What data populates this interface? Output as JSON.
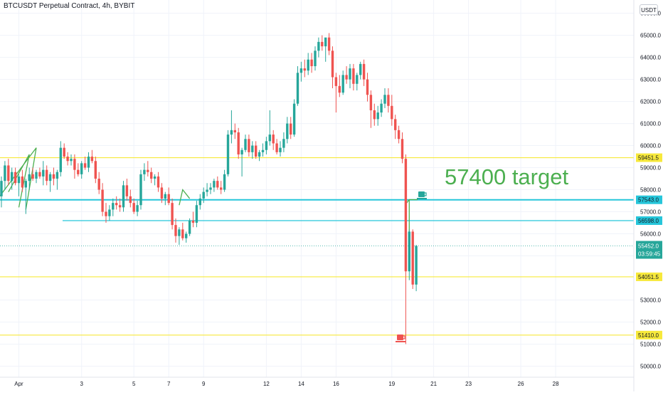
{
  "chart_data": {
    "type": "candlestick",
    "title": "BTCUSDT Perpetual Contract, 4h, BYBIT",
    "currency": "USDT",
    "ylim": [
      49500,
      66600
    ],
    "x_tick_labels": [
      "Apr",
      "3",
      "5",
      "7",
      "9",
      "12",
      "14",
      "16",
      "19",
      "21",
      "23",
      "26",
      "28"
    ],
    "y_tick_labels": [
      "66000.0",
      "65000.0",
      "64000.0",
      "63000.0",
      "62000.0",
      "61000.0",
      "60000.0",
      "59000.0",
      "58000.0",
      "57000.0",
      "56000.0",
      "55000.0",
      "53000.0",
      "52000.0",
      "51000.0",
      "50000.0"
    ],
    "y_tick_values": [
      66000,
      65000,
      64000,
      63000,
      62000,
      61000,
      60000,
      59000,
      58000,
      57000,
      56000,
      55000,
      53000,
      52000,
      51000,
      50000
    ],
    "horizontal_levels": [
      {
        "label": "59451.5",
        "value": 59451.5,
        "color": "#f7e93b",
        "text_color": "#131722"
      },
      {
        "label": "57543.0",
        "value": 57543.0,
        "color": "#26c6da",
        "text_color": "#131722"
      },
      {
        "label": "56598.0",
        "value": 56598.0,
        "color": "#26c6da",
        "text_color": "#131722",
        "partial": true
      },
      {
        "label": "54051.5",
        "value": 54051.5,
        "color": "#f7e93b",
        "text_color": "#131722"
      },
      {
        "label": "51410.0",
        "value": 51410.0,
        "color": "#f7e93b",
        "text_color": "#131722"
      }
    ],
    "last_price": {
      "label": "55452.0",
      "countdown": "03:59:45",
      "value": 55452,
      "color": "#26a69a"
    },
    "annotation_text": "57400 target",
    "colors": {
      "up": "#26a69a",
      "down": "#ef5350",
      "target_arrow": "#4caf50",
      "grid": "#f0f3fa"
    },
    "candles": [
      {
        "o": 57700,
        "h": 58600,
        "l": 57200,
        "c": 58400
      },
      {
        "o": 58400,
        "h": 59300,
        "l": 58000,
        "c": 59100
      },
      {
        "o": 59100,
        "h": 59400,
        "l": 58200,
        "c": 58400
      },
      {
        "o": 58400,
        "h": 59000,
        "l": 58000,
        "c": 58800
      },
      {
        "o": 58800,
        "h": 59000,
        "l": 58200,
        "c": 58300
      },
      {
        "o": 58300,
        "h": 58700,
        "l": 57700,
        "c": 58600
      },
      {
        "o": 58600,
        "h": 58900,
        "l": 57900,
        "c": 58100
      },
      {
        "o": 58100,
        "h": 58500,
        "l": 56900,
        "c": 58400
      },
      {
        "o": 58400,
        "h": 59000,
        "l": 58000,
        "c": 58700
      },
      {
        "o": 58700,
        "h": 59000,
        "l": 58400,
        "c": 58500
      },
      {
        "o": 58500,
        "h": 58900,
        "l": 58300,
        "c": 58800
      },
      {
        "o": 58800,
        "h": 59000,
        "l": 58500,
        "c": 58600
      },
      {
        "o": 58600,
        "h": 59300,
        "l": 58200,
        "c": 58900
      },
      {
        "o": 58900,
        "h": 59100,
        "l": 58200,
        "c": 58400
      },
      {
        "o": 58400,
        "h": 58800,
        "l": 57900,
        "c": 58700
      },
      {
        "o": 58700,
        "h": 59000,
        "l": 58200,
        "c": 58500
      },
      {
        "o": 58500,
        "h": 58900,
        "l": 58000,
        "c": 58800
      },
      {
        "o": 58800,
        "h": 60200,
        "l": 58600,
        "c": 59900
      },
      {
        "o": 59900,
        "h": 60100,
        "l": 59400,
        "c": 59500
      },
      {
        "o": 59500,
        "h": 59700,
        "l": 59100,
        "c": 59300
      },
      {
        "o": 59300,
        "h": 59600,
        "l": 59100,
        "c": 59400
      },
      {
        "o": 59400,
        "h": 59600,
        "l": 58500,
        "c": 58900
      },
      {
        "o": 58900,
        "h": 59200,
        "l": 58600,
        "c": 58700
      },
      {
        "o": 58700,
        "h": 59300,
        "l": 58500,
        "c": 59200
      },
      {
        "o": 59200,
        "h": 59500,
        "l": 58900,
        "c": 59000
      },
      {
        "o": 59000,
        "h": 59700,
        "l": 58800,
        "c": 59500
      },
      {
        "o": 59500,
        "h": 59800,
        "l": 59200,
        "c": 59300
      },
      {
        "o": 59300,
        "h": 59500,
        "l": 58300,
        "c": 58500
      },
      {
        "o": 58500,
        "h": 58800,
        "l": 57800,
        "c": 58000
      },
      {
        "o": 58000,
        "h": 58300,
        "l": 56800,
        "c": 57000
      },
      {
        "o": 57000,
        "h": 57400,
        "l": 56500,
        "c": 56800
      },
      {
        "o": 56800,
        "h": 57300,
        "l": 56600,
        "c": 57100
      },
      {
        "o": 57100,
        "h": 57600,
        "l": 56800,
        "c": 57400
      },
      {
        "o": 57400,
        "h": 57700,
        "l": 57100,
        "c": 57300
      },
      {
        "o": 57300,
        "h": 57600,
        "l": 57000,
        "c": 57200
      },
      {
        "o": 57200,
        "h": 58400,
        "l": 57000,
        "c": 58200
      },
      {
        "o": 58200,
        "h": 58500,
        "l": 57500,
        "c": 57700
      },
      {
        "o": 57700,
        "h": 58000,
        "l": 57200,
        "c": 57400
      },
      {
        "o": 57400,
        "h": 57600,
        "l": 56900,
        "c": 57000
      },
      {
        "o": 57000,
        "h": 57500,
        "l": 56800,
        "c": 57300
      },
      {
        "o": 57300,
        "h": 58900,
        "l": 57100,
        "c": 58700
      },
      {
        "o": 58700,
        "h": 59200,
        "l": 58400,
        "c": 58900
      },
      {
        "o": 58900,
        "h": 59300,
        "l": 58600,
        "c": 58800
      },
      {
        "o": 58800,
        "h": 59000,
        "l": 58300,
        "c": 58500
      },
      {
        "o": 58500,
        "h": 58700,
        "l": 58200,
        "c": 58600
      },
      {
        "o": 58600,
        "h": 58800,
        "l": 57900,
        "c": 58100
      },
      {
        "o": 58100,
        "h": 58300,
        "l": 57400,
        "c": 57600
      },
      {
        "o": 57600,
        "h": 57900,
        "l": 57300,
        "c": 57800
      },
      {
        "o": 57800,
        "h": 58100,
        "l": 57300,
        "c": 57400
      },
      {
        "o": 57400,
        "h": 57600,
        "l": 56200,
        "c": 56400
      },
      {
        "o": 56400,
        "h": 56700,
        "l": 55600,
        "c": 55900
      },
      {
        "o": 55900,
        "h": 56300,
        "l": 55500,
        "c": 56200
      },
      {
        "o": 56200,
        "h": 56500,
        "l": 55700,
        "c": 55800
      },
      {
        "o": 55800,
        "h": 56100,
        "l": 55600,
        "c": 56000
      },
      {
        "o": 56000,
        "h": 56700,
        "l": 55900,
        "c": 56600
      },
      {
        "o": 56600,
        "h": 57000,
        "l": 56300,
        "c": 56500
      },
      {
        "o": 56500,
        "h": 57500,
        "l": 56300,
        "c": 57300
      },
      {
        "o": 57300,
        "h": 57800,
        "l": 57100,
        "c": 57600
      },
      {
        "o": 57600,
        "h": 58100,
        "l": 57400,
        "c": 57900
      },
      {
        "o": 57900,
        "h": 58300,
        "l": 57700,
        "c": 58000
      },
      {
        "o": 58000,
        "h": 58300,
        "l": 57800,
        "c": 58100
      },
      {
        "o": 58100,
        "h": 58500,
        "l": 57900,
        "c": 58400
      },
      {
        "o": 58400,
        "h": 58600,
        "l": 58000,
        "c": 58100
      },
      {
        "o": 58100,
        "h": 58400,
        "l": 57800,
        "c": 58000
      },
      {
        "o": 58000,
        "h": 58900,
        "l": 57900,
        "c": 58700
      },
      {
        "o": 58700,
        "h": 60700,
        "l": 58600,
        "c": 60500
      },
      {
        "o": 60500,
        "h": 61600,
        "l": 60100,
        "c": 60700
      },
      {
        "o": 60700,
        "h": 61000,
        "l": 60300,
        "c": 60600
      },
      {
        "o": 60600,
        "h": 60800,
        "l": 59400,
        "c": 59600
      },
      {
        "o": 59600,
        "h": 59900,
        "l": 58600,
        "c": 59800
      },
      {
        "o": 59800,
        "h": 60500,
        "l": 59700,
        "c": 60300
      },
      {
        "o": 60300,
        "h": 60500,
        "l": 59500,
        "c": 59700
      },
      {
        "o": 59700,
        "h": 60200,
        "l": 59400,
        "c": 60000
      },
      {
        "o": 60000,
        "h": 60200,
        "l": 59400,
        "c": 59500
      },
      {
        "o": 59500,
        "h": 59800,
        "l": 59300,
        "c": 59700
      },
      {
        "o": 59700,
        "h": 60100,
        "l": 59500,
        "c": 59800
      },
      {
        "o": 59800,
        "h": 60400,
        "l": 59600,
        "c": 60200
      },
      {
        "o": 60200,
        "h": 61600,
        "l": 60000,
        "c": 60500
      },
      {
        "o": 60500,
        "h": 60700,
        "l": 59800,
        "c": 60100
      },
      {
        "o": 60100,
        "h": 60300,
        "l": 59600,
        "c": 59700
      },
      {
        "o": 59700,
        "h": 60200,
        "l": 59500,
        "c": 59900
      },
      {
        "o": 59900,
        "h": 60600,
        "l": 59700,
        "c": 60300
      },
      {
        "o": 60300,
        "h": 61300,
        "l": 60100,
        "c": 61000
      },
      {
        "o": 61000,
        "h": 61300,
        "l": 60300,
        "c": 60500
      },
      {
        "o": 60500,
        "h": 62100,
        "l": 60400,
        "c": 61900
      },
      {
        "o": 61900,
        "h": 63600,
        "l": 61800,
        "c": 63300
      },
      {
        "o": 63300,
        "h": 63800,
        "l": 62900,
        "c": 63500
      },
      {
        "o": 63500,
        "h": 63900,
        "l": 63100,
        "c": 63400
      },
      {
        "o": 63400,
        "h": 64200,
        "l": 63200,
        "c": 63900
      },
      {
        "o": 63900,
        "h": 64200,
        "l": 63300,
        "c": 63600
      },
      {
        "o": 63600,
        "h": 64500,
        "l": 63400,
        "c": 64300
      },
      {
        "o": 64300,
        "h": 64900,
        "l": 64000,
        "c": 64700
      },
      {
        "o": 64700,
        "h": 65000,
        "l": 64300,
        "c": 64500
      },
      {
        "o": 64500,
        "h": 64800,
        "l": 63800,
        "c": 64900
      },
      {
        "o": 64900,
        "h": 65100,
        "l": 64100,
        "c": 64300
      },
      {
        "o": 64300,
        "h": 64500,
        "l": 62600,
        "c": 63100
      },
      {
        "o": 63100,
        "h": 63300,
        "l": 61500,
        "c": 62700
      },
      {
        "o": 62700,
        "h": 63200,
        "l": 62200,
        "c": 62400
      },
      {
        "o": 62400,
        "h": 63400,
        "l": 62300,
        "c": 63200
      },
      {
        "o": 63200,
        "h": 63600,
        "l": 62800,
        "c": 63000
      },
      {
        "o": 63000,
        "h": 63700,
        "l": 62600,
        "c": 63500
      },
      {
        "o": 63500,
        "h": 63700,
        "l": 62500,
        "c": 62800
      },
      {
        "o": 62800,
        "h": 63300,
        "l": 62500,
        "c": 63200
      },
      {
        "o": 63200,
        "h": 63800,
        "l": 63000,
        "c": 63700
      },
      {
        "o": 63700,
        "h": 63900,
        "l": 62700,
        "c": 63000
      },
      {
        "o": 63000,
        "h": 63300,
        "l": 62000,
        "c": 62300
      },
      {
        "o": 62300,
        "h": 62500,
        "l": 60800,
        "c": 61600
      },
      {
        "o": 61600,
        "h": 61900,
        "l": 60900,
        "c": 61200
      },
      {
        "o": 61200,
        "h": 61800,
        "l": 60900,
        "c": 61500
      },
      {
        "o": 61500,
        "h": 62100,
        "l": 61300,
        "c": 61900
      },
      {
        "o": 61900,
        "h": 62600,
        "l": 61700,
        "c": 62300
      },
      {
        "o": 62300,
        "h": 62600,
        "l": 61500,
        "c": 61800
      },
      {
        "o": 61800,
        "h": 62300,
        "l": 60900,
        "c": 61200
      },
      {
        "o": 61200,
        "h": 61400,
        "l": 60300,
        "c": 60700
      },
      {
        "o": 60700,
        "h": 60900,
        "l": 60100,
        "c": 60300
      },
      {
        "o": 60300,
        "h": 60600,
        "l": 59200,
        "c": 59400
      },
      {
        "o": 59400,
        "h": 59600,
        "l": 51000,
        "c": 54300
      },
      {
        "o": 54300,
        "h": 56200,
        "l": 53900,
        "c": 56100
      },
      {
        "o": 56100,
        "h": 56200,
        "l": 53500,
        "c": 53700
      },
      {
        "o": 53700,
        "h": 55500,
        "l": 53400,
        "c": 55452
      }
    ],
    "x_label_candle_index": [
      5,
      23,
      38,
      48,
      58,
      76,
      86,
      96,
      112,
      124,
      134,
      149,
      159
    ],
    "drawings": {
      "zigzag_left": [
        [
          2,
          57900
        ],
        [
          8,
          59600
        ],
        [
          5,
          57200
        ]
      ],
      "wedge_left": [
        [
          -1,
          57600
        ],
        [
          10,
          59900
        ],
        [
          7,
          57100
        ]
      ],
      "small_arrow_apr8": [
        [
          51,
          57300
        ],
        [
          52,
          58000
        ],
        [
          54,
          57600
        ]
      ],
      "target_arrow": {
        "start": [
          117,
          55400
        ],
        "end": [
          117,
          57550
        ],
        "head_to": [
          119,
          57550
        ]
      }
    }
  }
}
